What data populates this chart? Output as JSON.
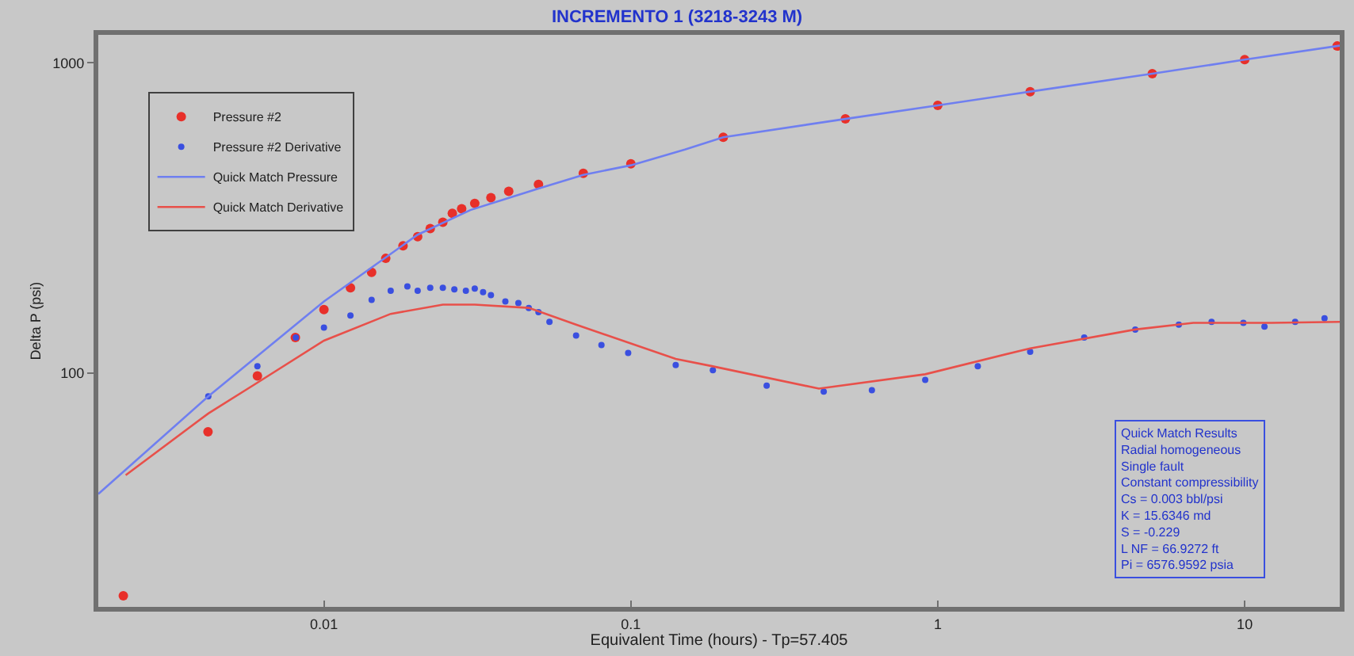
{
  "chart_data": {
    "type": "scatter",
    "title": "INCREMENTO 1 (3218-3243 M)",
    "xlabel": "Equivalent Time (hours) - Tp=57.405",
    "ylabel": "Delta P (psi)",
    "log": "xy",
    "grid": false,
    "legend": "top left",
    "xlim": [
      0.00184,
      20.4
    ],
    "ylim": [
      17.6,
      1230
    ],
    "xticks": [
      0.01,
      0.1,
      1,
      10
    ],
    "yticks": [
      100,
      1000
    ],
    "series": [
      {
        "name": "Pressure #2",
        "marker": "circle",
        "color": "#e8302a",
        "x": [
          0.00222,
          0.00419,
          0.00607,
          0.00807,
          0.01,
          0.0122,
          0.0143,
          0.0159,
          0.0181,
          0.0202,
          0.0222,
          0.0244,
          0.0262,
          0.0281,
          0.031,
          0.035,
          0.04,
          0.05,
          0.07,
          0.1,
          0.2,
          0.5,
          1,
          2,
          5,
          10,
          20
        ],
        "values": [
          19.1,
          64.6,
          97.7,
          130,
          160,
          188,
          211,
          234,
          257,
          275,
          292,
          306,
          327,
          338,
          352,
          367,
          385,
          405,
          440,
          472,
          575,
          659,
          729,
          807,
          922,
          1023,
          1132
        ]
      },
      {
        "name": "Pressure #2 Derivative",
        "marker": "circle",
        "color": "#3a4fe0",
        "x": [
          0.0042,
          0.00607,
          0.0081,
          0.01,
          0.0122,
          0.0143,
          0.0165,
          0.0187,
          0.0202,
          0.0222,
          0.0244,
          0.0266,
          0.029,
          0.031,
          0.033,
          0.035,
          0.039,
          0.043,
          0.0465,
          0.05,
          0.0543,
          0.0663,
          0.0802,
          0.098,
          0.14,
          0.185,
          0.277,
          0.425,
          0.61,
          0.91,
          1.35,
          2.0,
          3.0,
          4.4,
          6.1,
          7.8,
          9.9,
          11.6,
          14.6,
          18.2
        ],
        "values": [
          84,
          105,
          130,
          140,
          153,
          172,
          184,
          190,
          184,
          188,
          188,
          186,
          184,
          187,
          182,
          178,
          170,
          168,
          162,
          157,
          146,
          132,
          123,
          116,
          106,
          102,
          91,
          87,
          88,
          95,
          105,
          117,
          130,
          138,
          143,
          146,
          145,
          141,
          146,
          150
        ]
      },
      {
        "name": "Quick Match Pressure",
        "type": "line",
        "line_style": "solid",
        "color": "#6f7ff0",
        "x": [
          0.00184,
          0.0042,
          0.01,
          0.0202,
          0.03,
          0.05,
          0.07,
          0.1,
          0.15,
          0.2,
          0.5,
          1,
          2,
          5,
          10,
          20.4
        ],
        "values": [
          40.7,
          84,
          170,
          279,
          335,
          393,
          435,
          467,
          525,
          575,
          659,
          729,
          807,
          922,
          1023,
          1135
        ]
      },
      {
        "name": "Quick Match Derivative",
        "type": "line",
        "line_style": "solid",
        "color": "#e8504a",
        "x": [
          0.00226,
          0.0042,
          0.00607,
          0.01,
          0.0165,
          0.0244,
          0.031,
          0.0465,
          0.0663,
          0.14,
          0.185,
          0.41,
          0.91,
          2.0,
          4.4,
          6.8,
          12.2,
          20.4
        ],
        "values": [
          46.8,
          74,
          93,
          127,
          155,
          166,
          166,
          162,
          143,
          111,
          105,
          89,
          99,
          120,
          138,
          145,
          145,
          146
        ]
      }
    ],
    "annotations": [
      "Quick Match Results",
      "Radial homogeneous",
      "Single fault",
      "Constant compressibility",
      "Cs = 0.003 bbl/psi",
      "K = 15.6346 md",
      "S = -0.229",
      "L NF = 66.9272 ft",
      "Pi = 6576.9592 psia"
    ]
  }
}
